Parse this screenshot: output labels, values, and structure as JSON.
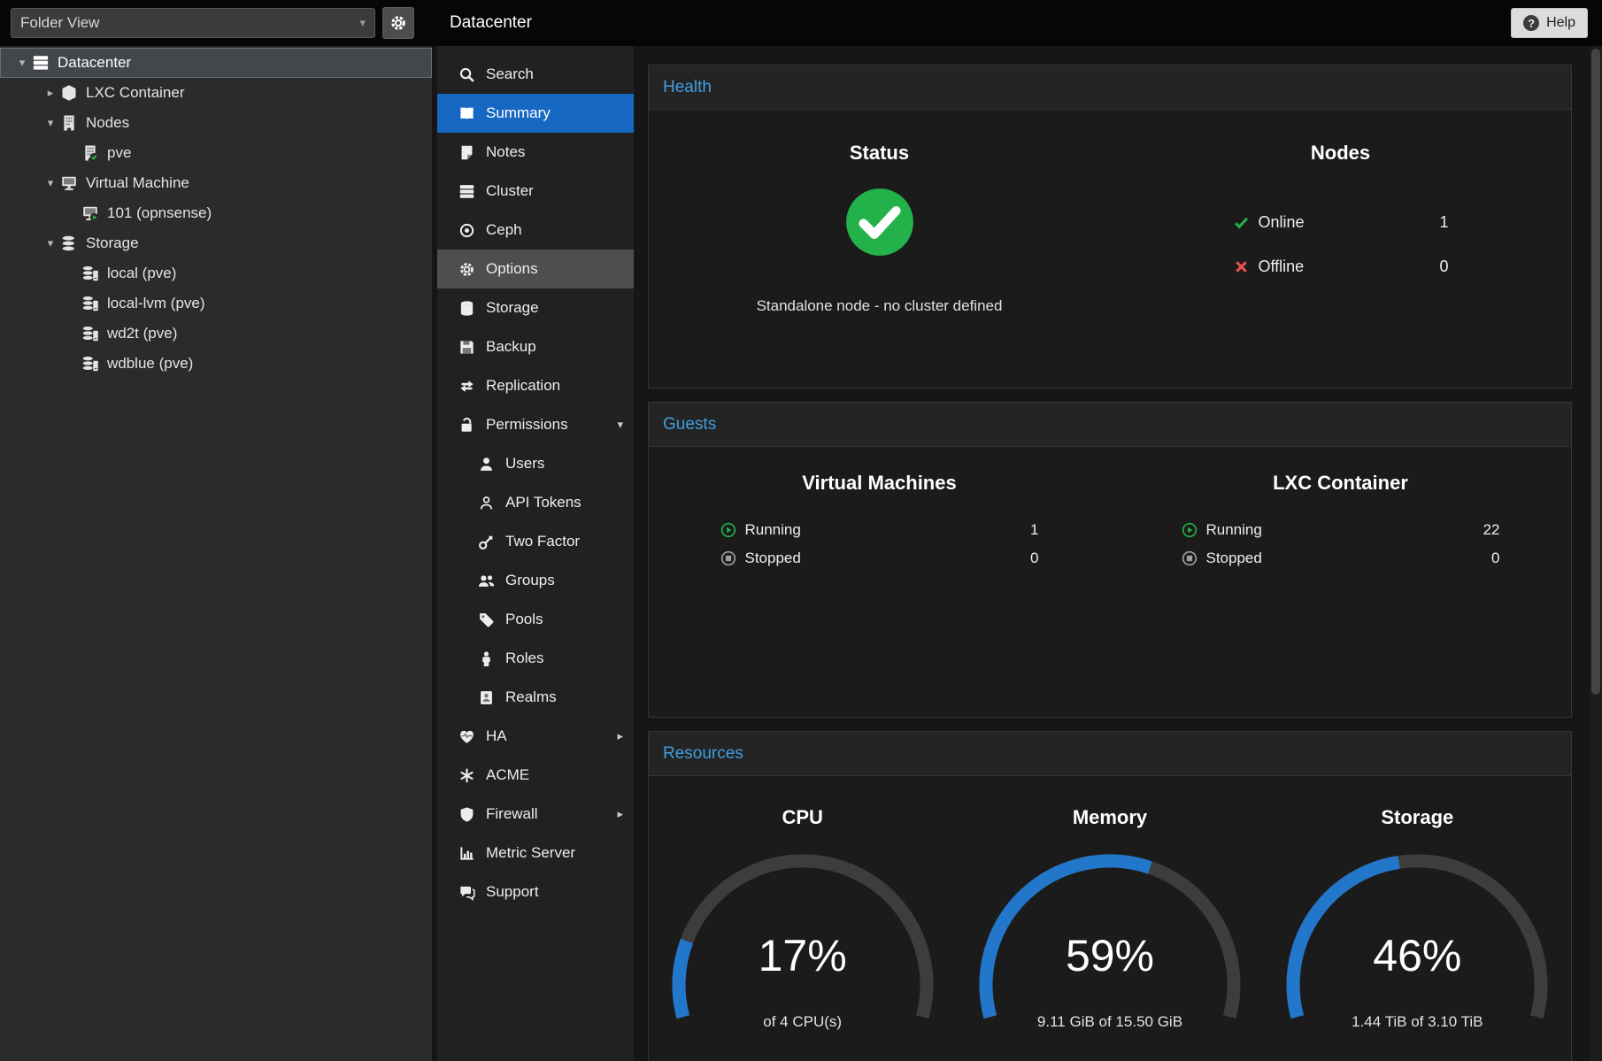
{
  "colors": {
    "accent_blue": "#3f9fe0",
    "selection_blue": "#1768c2",
    "ok_green": "#23b14a",
    "err_red": "#e5504f",
    "gauge_blue": "#2377cb"
  },
  "topbar": {
    "title": "Datacenter",
    "help_label": "Help",
    "help_icon": "question-circle",
    "tree_settings_icon": "gear"
  },
  "sidebar": {
    "view_selector": "Folder View",
    "view_selector_icon": "chevron-down",
    "tree": [
      {
        "label": "Datacenter",
        "level": 0,
        "icon": "server",
        "expander": "expanded",
        "selected": true
      },
      {
        "label": "LXC Container",
        "level": 1,
        "icon": "cube",
        "expander": "collapsed"
      },
      {
        "label": "Nodes",
        "level": 1,
        "icon": "building",
        "expander": "expanded"
      },
      {
        "label": "pve",
        "level": 2,
        "icon": "building-check"
      },
      {
        "label": "Virtual Machine",
        "level": 1,
        "icon": "monitor",
        "expander": "expanded"
      },
      {
        "label": "101 (opnsense)",
        "level": 2,
        "icon": "monitor-play"
      },
      {
        "label": "Storage",
        "level": 1,
        "icon": "disks",
        "expander": "expanded"
      },
      {
        "label": "local (pve)",
        "level": 2,
        "icon": "disk-drive"
      },
      {
        "label": "local-lvm (pve)",
        "level": 2,
        "icon": "disk-drive"
      },
      {
        "label": "wd2t (pve)",
        "level": 2,
        "icon": "disk-drive"
      },
      {
        "label": "wdblue (pve)",
        "level": 2,
        "icon": "disk-drive"
      }
    ]
  },
  "menu": {
    "items": [
      {
        "label": "Search",
        "icon": "search"
      },
      {
        "label": "Summary",
        "icon": "book",
        "state": "active"
      },
      {
        "label": "Notes",
        "icon": "note"
      },
      {
        "label": "Cluster",
        "icon": "cluster"
      },
      {
        "label": "Ceph",
        "icon": "ceph"
      },
      {
        "label": "Options",
        "icon": "gear",
        "state": "focused"
      },
      {
        "label": "Storage",
        "icon": "database"
      },
      {
        "label": "Backup",
        "icon": "floppy"
      },
      {
        "label": "Replication",
        "icon": "replication"
      },
      {
        "label": "Permissions",
        "icon": "unlock",
        "arrow": "down"
      },
      {
        "label": "Users",
        "icon": "user",
        "sub": true
      },
      {
        "label": "API Tokens",
        "icon": "user-o",
        "sub": true
      },
      {
        "label": "Two Factor",
        "icon": "key",
        "sub": true
      },
      {
        "label": "Groups",
        "icon": "users",
        "sub": true
      },
      {
        "label": "Pools",
        "icon": "tag",
        "sub": true
      },
      {
        "label": "Roles",
        "icon": "person",
        "sub": true
      },
      {
        "label": "Realms",
        "icon": "idcard",
        "sub": true
      },
      {
        "label": "HA",
        "icon": "heart",
        "arrow": "right"
      },
      {
        "label": "ACME",
        "icon": "asterisk"
      },
      {
        "label": "Firewall",
        "icon": "shield",
        "arrow": "right"
      },
      {
        "label": "Metric Server",
        "icon": "chart"
      },
      {
        "label": "Support",
        "icon": "comments"
      }
    ]
  },
  "health": {
    "title": "Health",
    "status": {
      "heading": "Status",
      "icon": "check-circle",
      "message": "Standalone node - no cluster defined"
    },
    "nodes": {
      "heading": "Nodes",
      "online_icon": "check",
      "online_label": "Online",
      "online_value": "1",
      "offline_icon": "cross",
      "offline_label": "Offline",
      "offline_value": "0"
    }
  },
  "guests": {
    "title": "Guests",
    "running_icon": "play-circle",
    "stopped_icon": "stop-circle",
    "columns": [
      {
        "heading": "Virtual Machines",
        "running_label": "Running",
        "running_value": "1",
        "stopped_label": "Stopped",
        "stopped_value": "0"
      },
      {
        "heading": "LXC Container",
        "running_label": "Running",
        "running_value": "22",
        "stopped_label": "Stopped",
        "stopped_value": "0"
      }
    ]
  },
  "resources": {
    "title": "Resources",
    "gauge_type": "semicircle",
    "gauges": [
      {
        "label": "CPU",
        "percent": 17,
        "detail": "of 4 CPU(s)"
      },
      {
        "label": "Memory",
        "percent": 59,
        "detail": "9.11 GiB of 15.50 GiB"
      },
      {
        "label": "Storage",
        "percent": 46,
        "detail": "1.44 TiB of 3.10 TiB"
      }
    ]
  }
}
